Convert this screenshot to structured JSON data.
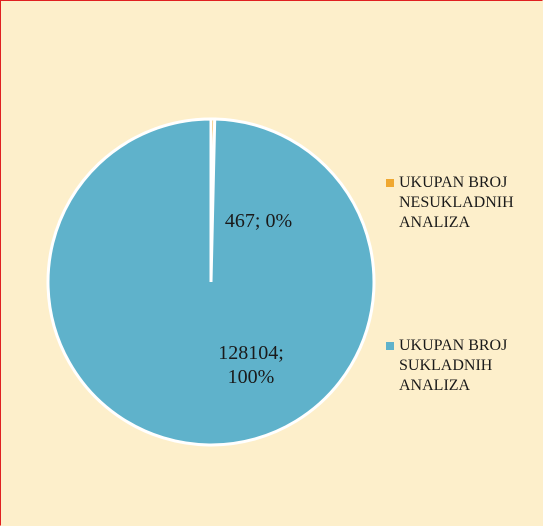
{
  "chart_data": {
    "type": "pie",
    "categories": [
      "UKUPAN BROJ NESUKLADNIH ANALIZA",
      "UKUPAN BROJ SUKLADNIH ANALIZA"
    ],
    "values": [
      467,
      128104
    ],
    "value_labels": [
      "467; 0%",
      "128104; 100%"
    ],
    "colors": [
      "#f0a830",
      "#5fb2cb"
    ]
  }
}
